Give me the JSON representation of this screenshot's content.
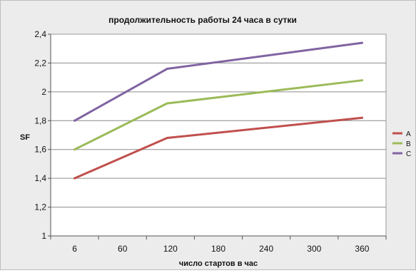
{
  "chart_data": {
    "type": "line",
    "title": "продолжительность работы 24 часа в сутки",
    "xlabel": "число стартов в час",
    "ylabel": "SF",
    "categories": [
      "6",
      "60",
      "120",
      "180",
      "240",
      "300",
      "360"
    ],
    "ylim": [
      1,
      2.4
    ],
    "yticks": [
      "1",
      "1,2",
      "1,4",
      "1,6",
      "1,8",
      "2",
      "2,2",
      "2,4"
    ],
    "grid": true,
    "legend_position": "right",
    "series": [
      {
        "name": "A",
        "color": "#c0504d",
        "x": [
          6,
          120,
          360
        ],
        "values": [
          1.4,
          1.68,
          1.82
        ]
      },
      {
        "name": "B",
        "color": "#9bbb59",
        "x": [
          6,
          120,
          360
        ],
        "values": [
          1.6,
          1.92,
          2.08
        ]
      },
      {
        "name": "C",
        "color": "#8064a2",
        "x": [
          6,
          120,
          360
        ],
        "values": [
          1.8,
          2.16,
          2.34
        ]
      }
    ]
  }
}
